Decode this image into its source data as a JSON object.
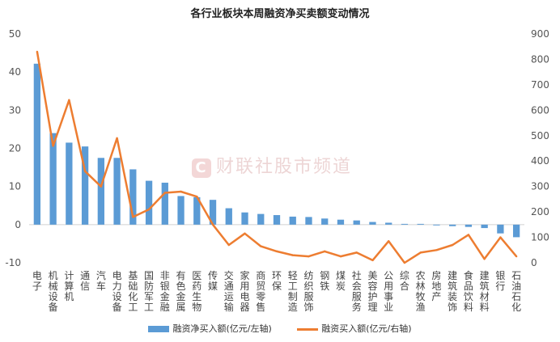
{
  "chart_data": {
    "type": "bar",
    "title": "各行业板块本周融资净买卖额变动情况",
    "categories": [
      "电子",
      "机械设备",
      "计算机",
      "通信",
      "汽车",
      "电力设备",
      "基础化工",
      "国防军工",
      "非银金融",
      "有色金属",
      "医药生物",
      "传媒",
      "交通运输",
      "家用电器",
      "商贸零售",
      "环保",
      "轻工制造",
      "纺织服饰",
      "钢铁",
      "煤炭",
      "社会服务",
      "美容护理",
      "公用事业",
      "综合",
      "农林牧渔",
      "房地产",
      "建筑装饰",
      "食品饮料",
      "建筑材料",
      "银行",
      "石油石化"
    ],
    "series": [
      {
        "name": "融资净买入额(亿元/左轴)",
        "type": "bar",
        "axis": "left",
        "values": [
          42.2,
          24.0,
          21.5,
          20.5,
          17.5,
          17.5,
          14.5,
          11.5,
          11.0,
          7.5,
          7.2,
          6.5,
          4.3,
          3.2,
          2.8,
          2.5,
          2.1,
          2.0,
          1.6,
          1.3,
          1.1,
          0.7,
          0.5,
          0.2,
          0.2,
          -0.2,
          -0.4,
          -0.6,
          -0.9,
          -2.3,
          -3.3
        ]
      },
      {
        "name": "融资买入额(亿元/右轴)",
        "type": "line",
        "axis": "right",
        "values": [
          830,
          460,
          640,
          360,
          300,
          490,
          180,
          210,
          275,
          280,
          260,
          150,
          70,
          115,
          65,
          45,
          30,
          25,
          45,
          25,
          40,
          10,
          85,
          0,
          40,
          50,
          70,
          110,
          15,
          100,
          25
        ]
      }
    ],
    "ylim_left": [
      -10,
      50
    ],
    "yticks_left": [
      -10,
      0,
      10,
      20,
      30,
      40,
      50
    ],
    "ylim_right": [
      0,
      900
    ],
    "yticks_right": [
      0,
      100,
      200,
      300,
      400,
      500,
      600,
      700,
      800,
      900
    ],
    "xlabel": "",
    "ylabel": "",
    "grid": false,
    "legend": "bottom-center",
    "colors": {
      "bar": "#5b9bd5",
      "line": "#ed7d31"
    }
  },
  "watermark": {
    "badge": "C",
    "text": "财联社股市频道"
  }
}
